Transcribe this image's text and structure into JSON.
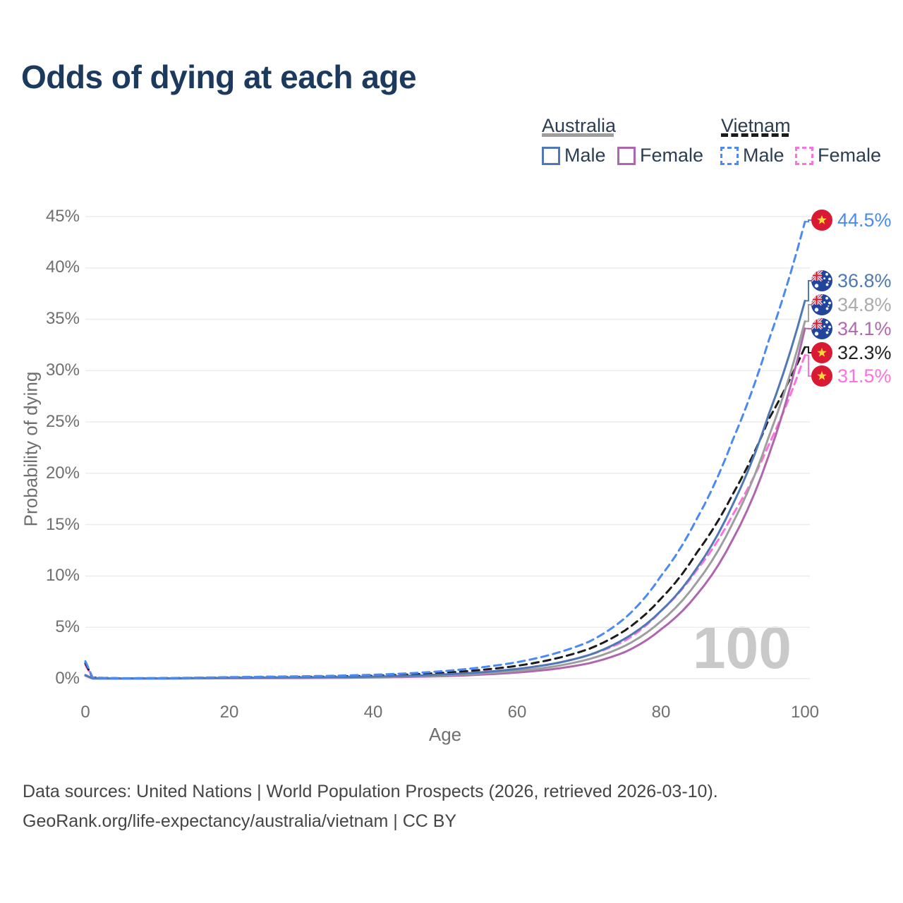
{
  "title": "Odds of dying at each age",
  "legend": {
    "groups": [
      {
        "name": "Australia",
        "line_style": "solid",
        "items": [
          {
            "label": "Male"
          },
          {
            "label": "Female"
          }
        ]
      },
      {
        "name": "Vietnam",
        "line_style": "dashed",
        "items": [
          {
            "label": "Male"
          },
          {
            "label": "Female"
          }
        ]
      }
    ]
  },
  "axes": {
    "x_label": "Age",
    "y_label": "Probability of dying",
    "x_ticks": [
      "0",
      "20",
      "40",
      "60",
      "80",
      "100"
    ],
    "y_ticks": [
      "0%",
      "5%",
      "10%",
      "15%",
      "20%",
      "25%",
      "30%",
      "35%",
      "40%",
      "45%"
    ]
  },
  "watermark": "100",
  "footer": {
    "line1": "Data sources: United Nations | World Population Prospects (2026, retrieved 2026-03-10).",
    "line2": "GeoRank.org/life-expectancy/australia/vietnam | CC BY"
  },
  "colors": {
    "title": "#1c3a5e",
    "grid": "#ececec",
    "australia_underline": "#a3a3a3",
    "vietnam_underline": "#1c1c1c",
    "vietnam_flag_red": "#da1a35",
    "vietnam_flag_star": "#ffd83c",
    "australia_flag_blue": "#21449c"
  },
  "chart_data": {
    "type": "line",
    "title": "Odds of dying at each age",
    "xlabel": "Age",
    "ylabel": "Probability of dying",
    "xlim": [
      0,
      100
    ],
    "ylim_percent": [
      0,
      45
    ],
    "grid": "horizontal",
    "legend_position": "top-right",
    "x": [
      0,
      1,
      5,
      10,
      15,
      20,
      25,
      30,
      35,
      40,
      45,
      50,
      55,
      60,
      65,
      70,
      75,
      80,
      85,
      90,
      95,
      100
    ],
    "series": [
      {
        "name": "Vietnam male",
        "country": "Vietnam",
        "sex": "male",
        "color": "#4a8af2",
        "dashed": true,
        "flag": "vietnam",
        "values": [
          1.7,
          0.12,
          0.04,
          0.05,
          0.09,
          0.15,
          0.19,
          0.23,
          0.29,
          0.38,
          0.52,
          0.75,
          1.1,
          1.6,
          2.4,
          3.6,
          5.9,
          10.0,
          15.6,
          23.3,
          33.0,
          44.5
        ],
        "end_label": {
          "text": "44.5%",
          "color": "#4a8af2"
        }
      },
      {
        "name": "Australia male",
        "country": "Australia",
        "sex": "male",
        "color": "#4e79b6",
        "dashed": false,
        "flag": "australia",
        "values": [
          0.35,
          0.03,
          0.01,
          0.02,
          0.05,
          0.08,
          0.1,
          0.12,
          0.15,
          0.2,
          0.28,
          0.42,
          0.62,
          0.95,
          1.45,
          2.3,
          3.9,
          6.6,
          10.8,
          17.0,
          25.8,
          36.8
        ],
        "end_label": {
          "text": "36.8%",
          "color": "#4e79b6"
        }
      },
      {
        "name": "Australia both sexes",
        "country": "Australia",
        "sex": "both",
        "color": "#9e9e9e",
        "dashed": false,
        "flag": "australia",
        "values": [
          0.32,
          0.025,
          0.009,
          0.015,
          0.04,
          0.06,
          0.075,
          0.09,
          0.12,
          0.16,
          0.22,
          0.33,
          0.5,
          0.76,
          1.17,
          1.9,
          3.2,
          5.6,
          9.4,
          15.2,
          23.6,
          34.8
        ],
        "end_label": {
          "text": "34.8%",
          "color": "#ababab"
        }
      },
      {
        "name": "Australia female",
        "country": "Australia",
        "sex": "female",
        "color": "#ae66ad",
        "dashed": false,
        "flag": "australia",
        "values": [
          0.28,
          0.02,
          0.008,
          0.012,
          0.025,
          0.04,
          0.05,
          0.065,
          0.085,
          0.12,
          0.17,
          0.25,
          0.39,
          0.6,
          0.93,
          1.5,
          2.6,
          4.8,
          8.2,
          13.6,
          21.8,
          34.1
        ],
        "end_label": {
          "text": "34.1%",
          "color": "#b168b1"
        }
      },
      {
        "name": "Vietnam both sexes",
        "country": "Vietnam",
        "sex": "both",
        "color": "#1c1c1c",
        "dashed": true,
        "flag": "vietnam",
        "values": [
          1.5,
          0.1,
          0.035,
          0.045,
          0.07,
          0.11,
          0.14,
          0.17,
          0.22,
          0.29,
          0.4,
          0.58,
          0.85,
          1.25,
          1.9,
          2.9,
          4.7,
          7.8,
          12.3,
          18.0,
          25.3,
          32.3
        ],
        "end_label": {
          "text": "32.3%",
          "color": "#222222"
        }
      },
      {
        "name": "Vietnam female",
        "country": "Vietnam",
        "sex": "female",
        "color": "#ff70df",
        "dashed": true,
        "flag": "vietnam",
        "values": [
          1.35,
          0.09,
          0.03,
          0.04,
          0.05,
          0.07,
          0.09,
          0.11,
          0.15,
          0.2,
          0.29,
          0.43,
          0.64,
          0.95,
          1.45,
          2.3,
          3.7,
          6.6,
          10.6,
          16.0,
          22.8,
          31.5
        ],
        "end_label": {
          "text": "31.5%",
          "color": "#ff70df"
        }
      }
    ]
  }
}
